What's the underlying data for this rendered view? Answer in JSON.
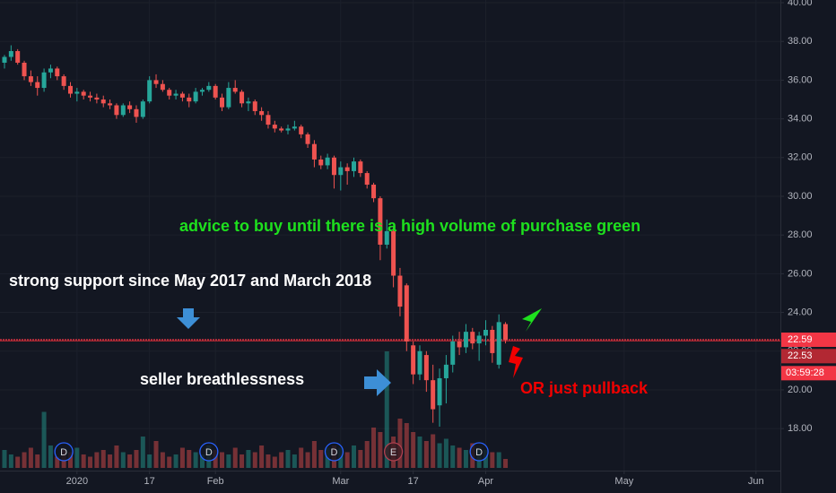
{
  "chart_data": {
    "type": "candlestick",
    "up_color": "#26a69a",
    "down_color": "#ef5350",
    "open": [
      36.9,
      37.2,
      37.5,
      36.9,
      36.2,
      35.9,
      35.6,
      36.4,
      36.6,
      36.2,
      35.7,
      35.3,
      35.4,
      35.2,
      35.1,
      35.0,
      34.8,
      34.7,
      34.2,
      34.7,
      34.5,
      34.1,
      34.9,
      36.0,
      35.8,
      35.5,
      35.2,
      35.3,
      35.1,
      34.9,
      35.4,
      35.5,
      35.7,
      35.1,
      34.6,
      35.6,
      35.4,
      34.8,
      34.9,
      34.4,
      34.2,
      33.7,
      33.5,
      33.4,
      33.5,
      33.6,
      33.2,
      32.7,
      31.9,
      31.6,
      32.0,
      31.1,
      31.5,
      31.3,
      31.8,
      31.2,
      30.6,
      29.9,
      27.5,
      28.2,
      25.9,
      25.4,
      22.3,
      20.8,
      21.8,
      20.5,
      19.2,
      20.6,
      21.3,
      22.5,
      22.2,
      23.0,
      22.4,
      22.8,
      23.1,
      21.3,
      23.4
    ],
    "high": [
      37.3,
      37.8,
      37.6,
      37.0,
      36.5,
      36.2,
      36.6,
      36.8,
      36.7,
      36.3,
      35.9,
      35.6,
      35.5,
      35.4,
      35.3,
      35.2,
      35.0,
      34.8,
      34.8,
      34.9,
      34.7,
      35.0,
      36.2,
      36.3,
      36.0,
      35.6,
      35.5,
      35.4,
      35.3,
      35.6,
      35.6,
      35.9,
      35.8,
      35.3,
      35.9,
      36.0,
      35.5,
      35.1,
      35.0,
      34.6,
      34.4,
      33.9,
      33.6,
      33.7,
      33.9,
      33.7,
      33.3,
      32.9,
      32.1,
      32.2,
      32.1,
      31.8,
      31.7,
      32.0,
      31.9,
      31.3,
      30.7,
      30.0,
      28.8,
      28.4,
      26.3,
      25.5,
      22.5,
      22.3,
      22.0,
      21.3,
      21.1,
      21.8,
      22.8,
      23.0,
      23.4,
      23.2,
      23.0,
      23.6,
      23.3,
      23.9,
      23.5
    ],
    "low": [
      36.6,
      37.0,
      36.8,
      36.0,
      35.7,
      35.2,
      35.4,
      36.1,
      36.0,
      35.5,
      35.1,
      34.9,
      35.0,
      34.9,
      34.8,
      34.6,
      34.5,
      34.0,
      34.1,
      34.3,
      33.8,
      34.0,
      34.8,
      35.6,
      35.4,
      35.0,
      35.0,
      34.9,
      34.6,
      34.8,
      35.2,
      35.4,
      35.0,
      34.4,
      34.5,
      35.3,
      34.6,
      34.4,
      34.2,
      33.9,
      33.5,
      33.3,
      33.3,
      33.2,
      33.4,
      33.0,
      32.5,
      31.5,
      31.4,
      31.4,
      30.4,
      30.3,
      30.6,
      31.0,
      31.0,
      30.4,
      29.7,
      26.7,
      27.3,
      25.3,
      23.8,
      22.0,
      20.3,
      20.5,
      19.9,
      18.3,
      18.1,
      19.3,
      20.9,
      21.8,
      21.9,
      22.1,
      21.5,
      22.3,
      21.4,
      21.1,
      22.4
    ],
    "close": [
      37.2,
      37.5,
      36.9,
      36.2,
      35.9,
      35.6,
      36.4,
      36.6,
      36.2,
      35.7,
      35.3,
      35.4,
      35.2,
      35.1,
      35.0,
      34.8,
      34.7,
      34.2,
      34.7,
      34.5,
      34.1,
      34.9,
      36.0,
      35.8,
      35.5,
      35.2,
      35.3,
      35.1,
      34.9,
      35.4,
      35.5,
      35.7,
      35.1,
      34.6,
      35.6,
      35.4,
      34.8,
      34.9,
      34.4,
      34.2,
      33.7,
      33.5,
      33.4,
      33.5,
      33.6,
      33.2,
      32.7,
      31.9,
      31.6,
      32.0,
      31.1,
      31.5,
      31.3,
      31.8,
      31.2,
      30.6,
      29.9,
      27.5,
      28.2,
      25.9,
      24.3,
      22.5,
      20.8,
      22.0,
      20.5,
      19.0,
      20.6,
      21.3,
      22.5,
      22.2,
      23.0,
      22.4,
      22.8,
      23.1,
      21.9,
      23.5,
      22.59
    ],
    "volume": [
      8,
      6,
      5,
      7,
      9,
      6,
      25,
      10,
      5,
      8,
      7,
      9,
      6,
      5,
      7,
      8,
      6,
      10,
      7,
      6,
      8,
      14,
      6,
      12,
      7,
      5,
      6,
      9,
      8,
      7,
      6,
      10,
      8,
      7,
      6,
      9,
      6,
      8,
      7,
      10,
      6,
      5,
      7,
      8,
      6,
      9,
      7,
      12,
      8,
      9,
      10,
      9,
      7,
      10,
      8,
      12,
      18,
      16,
      52,
      14,
      22,
      20,
      16,
      14,
      12,
      15,
      11,
      13,
      10,
      9,
      8,
      11,
      9,
      8,
      7,
      7,
      4
    ],
    "y2lim": [
      0,
      70
    ],
    "xlim": [
      -0.68,
      117.7
    ],
    "ylim": [
      15.83,
      40.14
    ],
    "xticks": [
      {
        "value": 11,
        "label": "2020"
      },
      {
        "value": 22,
        "label": "17"
      },
      {
        "value": 32,
        "label": "Feb"
      },
      {
        "value": 51,
        "label": "Mar"
      },
      {
        "value": 62,
        "label": "17"
      },
      {
        "value": 73,
        "label": "Apr"
      },
      {
        "value": 94,
        "label": "May"
      },
      {
        "value": 114,
        "label": "Jun"
      }
    ],
    "yticks": [
      {
        "value": 18,
        "label": "18.00"
      },
      {
        "value": 20,
        "label": "20.00"
      },
      {
        "value": 22,
        "label": "22.00"
      },
      {
        "value": 24,
        "label": "24.00"
      },
      {
        "value": 26,
        "label": "26.00"
      },
      {
        "value": 28,
        "label": "28.00"
      },
      {
        "value": 30,
        "label": "30.00"
      },
      {
        "value": 32,
        "label": "32.00"
      },
      {
        "value": 34,
        "label": "34.00"
      },
      {
        "value": 36,
        "label": "36.00"
      },
      {
        "value": 38,
        "label": "38.00"
      },
      {
        "value": 40,
        "label": "40.00"
      }
    ],
    "grid": true,
    "price_lines": [
      {
        "value": 22.59,
        "label": "22.59",
        "color": "#f23645"
      },
      {
        "value": 22.53,
        "label": "22.53",
        "color": "#b22833"
      }
    ],
    "countdown": "03:59:28",
    "events": [
      {
        "x": 9,
        "label": "D"
      },
      {
        "x": 31,
        "label": "D"
      },
      {
        "x": 50,
        "label": "D"
      },
      {
        "x": 59,
        "label": "E"
      },
      {
        "x": 72,
        "label": "D"
      }
    ],
    "annotations": [
      {
        "text": "advice to buy until there is a high volume of  purchase green",
        "color": "#1ee01e"
      },
      {
        "text": "strong support since May 2017 and March 2018",
        "color": "#ffffff"
      },
      {
        "text": "seller breathlessness",
        "color": "#ffffff"
      },
      {
        "text": "OR just pullback",
        "color": "#f20000"
      }
    ]
  }
}
